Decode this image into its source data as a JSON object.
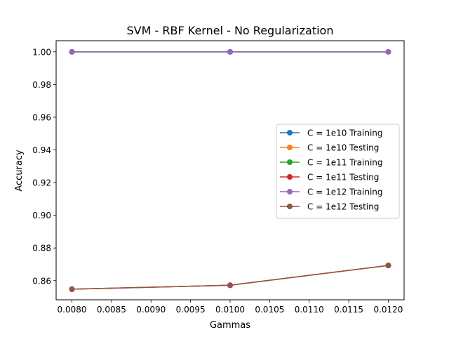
{
  "chart_data": {
    "type": "line",
    "title": "SVM - RBF Kernel - No Regularization",
    "xlabel": "Gammas",
    "ylabel": "Accuracy",
    "x": [
      0.008,
      0.01,
      0.012
    ],
    "xlim": [
      0.0078,
      0.0122
    ],
    "ylim": [
      0.8483,
      1.0068
    ],
    "xticks": [
      "0.0080",
      "0.0085",
      "0.0090",
      "0.0095",
      "0.0100",
      "0.0105",
      "0.0110",
      "0.0115",
      "0.0120"
    ],
    "xtick_values": [
      0.008,
      0.0085,
      0.009,
      0.0095,
      0.01,
      0.0105,
      0.011,
      0.0115,
      0.012
    ],
    "yticks": [
      "0.86",
      "0.88",
      "0.90",
      "0.92",
      "0.94",
      "0.96",
      "0.98",
      "1.00"
    ],
    "ytick_values": [
      0.86,
      0.88,
      0.9,
      0.92,
      0.94,
      0.96,
      0.98,
      1.0
    ],
    "grid": false,
    "legend_position": "center-right",
    "series": [
      {
        "name": "C = 1e10 Training",
        "color": "#1f77b4",
        "values": [
          1.0,
          1.0,
          1.0
        ]
      },
      {
        "name": "C = 1e10 Testing",
        "color": "#ff7f0e",
        "values": [
          0.8548,
          0.8572,
          0.8693
        ]
      },
      {
        "name": "C = 1e11 Training",
        "color": "#2ca02c",
        "values": [
          1.0,
          1.0,
          1.0
        ]
      },
      {
        "name": "C = 1e11 Testing",
        "color": "#d62728",
        "values": [
          0.8548,
          0.8572,
          0.8693
        ]
      },
      {
        "name": "C = 1e12 Training",
        "color": "#9467bd",
        "values": [
          1.0,
          1.0,
          1.0
        ]
      },
      {
        "name": "C = 1e12 Testing",
        "color": "#8c564b",
        "values": [
          0.8548,
          0.8572,
          0.8693
        ]
      }
    ]
  }
}
